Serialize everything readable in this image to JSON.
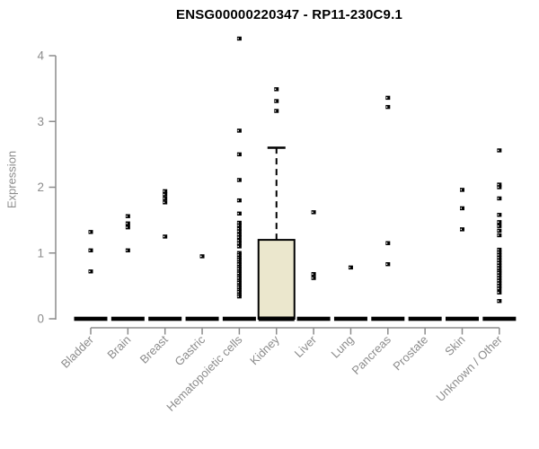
{
  "page": {
    "background": "#ffffff"
  },
  "chart_data": {
    "type": "boxplot",
    "title": "ENSG00000220347 - RP11-230C9.1",
    "xlabel": "",
    "ylabel": "Expression",
    "ylim": [
      0,
      4
    ],
    "yticks": [
      0,
      1,
      2,
      3,
      4
    ],
    "grid": false,
    "legend": "none",
    "axis_color": "#8c8c8c",
    "point_color": "#000000",
    "box_fill": "#ebe7cd",
    "categories": [
      "Bladder",
      "Brain",
      "Breast",
      "Gastric",
      "Hematopoietic cells",
      "Kidney",
      "Liver",
      "Lung",
      "Pancreas",
      "Prostate",
      "Skin",
      "Unknown / Other"
    ],
    "series": [
      {
        "category": "Bladder",
        "median": 0,
        "points": [
          1.32,
          1.04,
          0.72
        ]
      },
      {
        "category": "Brain",
        "median": 0,
        "points": [
          1.56,
          1.45,
          1.39,
          1.04
        ]
      },
      {
        "category": "Breast",
        "median": 0,
        "points": [
          1.94,
          1.89,
          1.83,
          1.77,
          1.25
        ]
      },
      {
        "category": "Gastric",
        "median": 0,
        "points": [
          0.95
        ]
      },
      {
        "category": "Hematopoietic cells",
        "median": 0,
        "points": [
          4.26,
          2.86,
          2.5,
          2.11,
          1.8,
          1.6,
          1.46,
          1.42,
          1.37,
          1.33,
          1.28,
          1.24,
          1.19,
          1.15,
          1.1,
          1.0,
          0.97,
          0.93,
          0.9,
          0.86,
          0.83,
          0.79,
          0.76,
          0.72,
          0.69,
          0.65,
          0.62,
          0.58,
          0.55,
          0.51,
          0.48,
          0.44,
          0.41,
          0.37,
          0.34
        ]
      },
      {
        "category": "Kidney",
        "median": 0,
        "box": {
          "q1": 0,
          "median": 0,
          "q3": 1.2,
          "whisker_high": 2.6
        },
        "points": [
          3.49,
          3.31,
          3.16
        ]
      },
      {
        "category": "Liver",
        "median": 0,
        "points": [
          1.62,
          0.68,
          0.62
        ]
      },
      {
        "category": "Lung",
        "median": 0,
        "points": [
          0.78
        ]
      },
      {
        "category": "Pancreas",
        "median": 0,
        "points": [
          3.36,
          3.22,
          1.15,
          0.83
        ]
      },
      {
        "category": "Prostate",
        "median": 0,
        "points": []
      },
      {
        "category": "Skin",
        "median": 0,
        "points": [
          1.96,
          1.68,
          1.36
        ]
      },
      {
        "category": "Unknown / Other",
        "median": 0,
        "points": [
          2.56,
          2.04,
          2.0,
          1.83,
          1.58,
          1.47,
          1.41,
          1.34,
          1.27,
          1.05,
          1.01,
          0.97,
          0.93,
          0.89,
          0.85,
          0.81,
          0.77,
          0.73,
          0.7,
          0.66,
          0.62,
          0.58,
          0.54,
          0.5,
          0.46,
          0.4,
          0.27
        ]
      }
    ]
  }
}
